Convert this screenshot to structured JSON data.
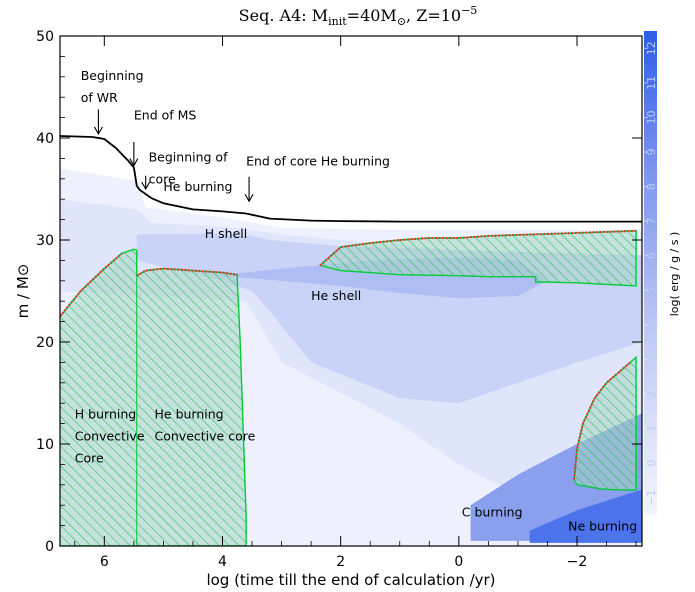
{
  "chart_data": {
    "type": "kippenhahn",
    "title_main": "Seq. A4: M",
    "title_sub": "init",
    "title_rest": "=40M",
    "title_sun": "⊙",
    "title_z": ", Z=10",
    "title_exp": "−5",
    "xlabel": "log (time till the end of calculation /yr)",
    "ylabel": "m / M⊙",
    "colorbar_label": "log( erg / g / s )",
    "xlim": [
      6.75,
      -3.1
    ],
    "ylim": [
      0,
      50
    ],
    "x_ticks": [
      6,
      4,
      2,
      0,
      -2
    ],
    "x_tick_labels": [
      "6",
      "4",
      "2",
      "0",
      "−2"
    ],
    "y_ticks": [
      0,
      10,
      20,
      30,
      40,
      50
    ],
    "y_tick_labels": [
      "0",
      "10",
      "20",
      "30",
      "40",
      "50"
    ],
    "colorbar_range": [
      -1.5,
      12.5
    ],
    "colorbar_ticks": [
      -1,
      0,
      1,
      2,
      3,
      4,
      5,
      6,
      7,
      8,
      9,
      10,
      11,
      12
    ],
    "colorbar_tick_labels": [
      "−1",
      "0",
      "1",
      "2",
      "3",
      "4",
      "5",
      "6",
      "7",
      "8",
      "9",
      "10",
      "11",
      "12"
    ],
    "colors": {
      "surface_line": "#000000",
      "convective_hatch": "#00cc33",
      "convective_fill": "#9ad0be",
      "boundary_red": "#e53030",
      "energy_low": "#eceffd",
      "energy_high": "#2f5ce8"
    },
    "surface_mass": {
      "x": [
        6.75,
        6.2,
        6.0,
        5.8,
        5.6,
        5.5,
        5.45,
        5.4,
        5.2,
        5.0,
        4.5,
        4.0,
        3.6,
        3.2,
        2.5,
        2.0,
        1.0,
        0.0,
        -1.0,
        -2.0,
        -3.1
      ],
      "y": [
        40.2,
        40.1,
        39.9,
        39.0,
        37.8,
        37.1,
        35.3,
        34.9,
        34.1,
        33.6,
        33.0,
        32.8,
        32.6,
        32.1,
        31.9,
        31.85,
        31.8,
        31.8,
        31.8,
        31.8,
        31.8
      ]
    },
    "convective_zones": [
      {
        "name": "H burning convective core",
        "x": [
          6.75,
          6.4,
          6.0,
          5.7,
          5.5,
          5.45,
          5.45,
          6.75
        ],
        "y": [
          22.5,
          25.0,
          27.2,
          28.7,
          29.1,
          29.0,
          0,
          0
        ]
      },
      {
        "name": "He burning convective core",
        "x": [
          5.45,
          5.3,
          5.0,
          4.5,
          4.0,
          3.75,
          3.75,
          3.7,
          3.6,
          3.6,
          5.45
        ],
        "y": [
          26.5,
          27.0,
          27.2,
          27.0,
          26.8,
          26.6,
          26.0,
          20.0,
          3.0,
          0,
          0
        ]
      },
      {
        "name": "He-shell convective zone",
        "x": [
          2.35,
          2.0,
          1.5,
          1.0,
          0.5,
          0.0,
          -0.5,
          -1.0,
          -2.0,
          -3.0,
          -3.0,
          -2.0,
          -1.3,
          -1.3,
          -0.5,
          0.0,
          1.0,
          2.0,
          2.35
        ],
        "y": [
          27.5,
          29.3,
          29.7,
          30.0,
          30.2,
          30.2,
          30.4,
          30.5,
          30.7,
          30.9,
          25.5,
          25.8,
          25.9,
          26.4,
          26.4,
          26.5,
          26.6,
          27.0,
          27.5
        ]
      },
      {
        "name": "C burning convective core",
        "x": [
          -1.95,
          -2.0,
          -2.1,
          -2.3,
          -2.5,
          -2.7,
          -2.9,
          -3.0,
          -3.0,
          -2.7,
          -2.4,
          -2.2,
          -2.0,
          -1.95
        ],
        "y": [
          6.5,
          9.5,
          12.0,
          14.5,
          16.0,
          17.0,
          18.0,
          18.5,
          5.5,
          5.5,
          5.6,
          5.8,
          6.0,
          6.5
        ]
      }
    ],
    "energy_regions": [
      {
        "level": 1,
        "x": [
          6.75,
          5.45,
          5.3,
          4.0,
          3.3,
          3.0,
          2.0,
          1.0,
          0.0,
          -1.0,
          -2.0,
          -3.1,
          -3.1,
          6.75
        ],
        "y": [
          37.0,
          35.8,
          33.2,
          32.2,
          31.5,
          31.2,
          31.1,
          31.0,
          31.0,
          31.0,
          31.0,
          31.0,
          0,
          0
        ]
      },
      {
        "level": 2,
        "x": [
          6.75,
          5.45,
          5.2,
          4.0,
          3.4,
          3.2,
          3.0,
          2.0,
          1.0,
          0.0,
          -1.0,
          -2.0,
          -3.1,
          -3.1,
          -2.0,
          -1.0,
          0.0,
          1.0,
          2.0,
          3.0,
          3.3,
          3.6,
          6.75
        ],
        "y": [
          34.0,
          33.0,
          31.7,
          31.3,
          30.9,
          30.7,
          30.5,
          30.0,
          29.5,
          29.0,
          28.5,
          28.0,
          27.5,
          0.5,
          2.5,
          5.0,
          8.0,
          12.0,
          15.0,
          18.0,
          21.0,
          24.0,
          25.0
        ]
      },
      {
        "level": 3,
        "x": [
          5.45,
          5.2,
          4.0,
          3.5,
          3.2,
          2.0,
          0.0,
          -3.1,
          -3.1,
          -2.0,
          -1.0,
          0.0,
          1.0,
          2.5,
          3.2,
          3.5,
          4.0,
          5.45
        ],
        "y": [
          30.5,
          30.6,
          30.6,
          30.4,
          30.0,
          29.4,
          29.0,
          28.5,
          20.0,
          18.0,
          16.0,
          14.0,
          14.5,
          18.0,
          23.0,
          25.0,
          26.0,
          28.0
        ]
      },
      {
        "level": 4,
        "x": [
          4.1,
          3.0,
          1.5,
          0.0,
          -1.0,
          -1.5,
          -1.0,
          0.0,
          1.0,
          2.0,
          3.0,
          4.1
        ],
        "y": [
          26.5,
          27.2,
          28.0,
          28.3,
          28.0,
          26.0,
          24.5,
          24.3,
          24.8,
          25.5,
          26.0,
          26.5
        ]
      },
      {
        "level": 5,
        "x": [
          -0.2,
          -1.0,
          -2.0,
          -3.1,
          -3.1,
          -2.0,
          -1.0,
          -0.2
        ],
        "y": [
          4.0,
          7.0,
          10.0,
          13.0,
          0.5,
          0.5,
          0.5,
          0.5
        ]
      },
      {
        "level": 6,
        "x": [
          -1.2,
          -2.0,
          -2.8,
          -3.1,
          -3.1,
          -2.5,
          -1.8,
          -1.2
        ],
        "y": [
          1.5,
          3.5,
          5.0,
          5.5,
          0.3,
          0.3,
          0.3,
          0.3
        ]
      }
    ],
    "annotations": [
      {
        "lines": [
          "Beginning",
          "of WR"
        ],
        "x": 6.4,
        "y": 45.7,
        "arrow_x": 6.1,
        "arrow_y0": 42.8,
        "arrow_y1": 40.4
      },
      {
        "lines": [
          "End of MS"
        ],
        "x": 5.5,
        "y": 41.8,
        "arrow_x": 5.5,
        "arrow_y0": 39.6,
        "arrow_y1": 37.3
      },
      {
        "lines": [
          "Beginning of",
          "core"
        ],
        "x": 5.25,
        "y": 37.7,
        "arrow_x": 5.3,
        "arrow_y0": 36.3,
        "arrow_y1": 35.0
      },
      {
        "lines": [
          "He burning"
        ],
        "x": 5.0,
        "y": 34.8
      },
      {
        "lines": [
          "End of core He burning"
        ],
        "x": 3.6,
        "y": 37.3,
        "arrow_x": 3.55,
        "arrow_y0": 36.2,
        "arrow_y1": 33.8
      },
      {
        "lines": [
          "H shell"
        ],
        "x": 4.3,
        "y": 30.2
      },
      {
        "lines": [
          "He shell"
        ],
        "x": 2.5,
        "y": 24.1
      },
      {
        "lines": [
          "H burning",
          "Convective",
          "Core"
        ],
        "x": 6.5,
        "y": 12.5
      },
      {
        "lines": [
          "He burning",
          "Convective core"
        ],
        "x": 5.15,
        "y": 12.5
      },
      {
        "lines": [
          "C burning"
        ],
        "x": -0.05,
        "y": 2.9
      },
      {
        "lines": [
          "Ne burning"
        ],
        "x": -1.85,
        "y": 1.5
      }
    ]
  }
}
